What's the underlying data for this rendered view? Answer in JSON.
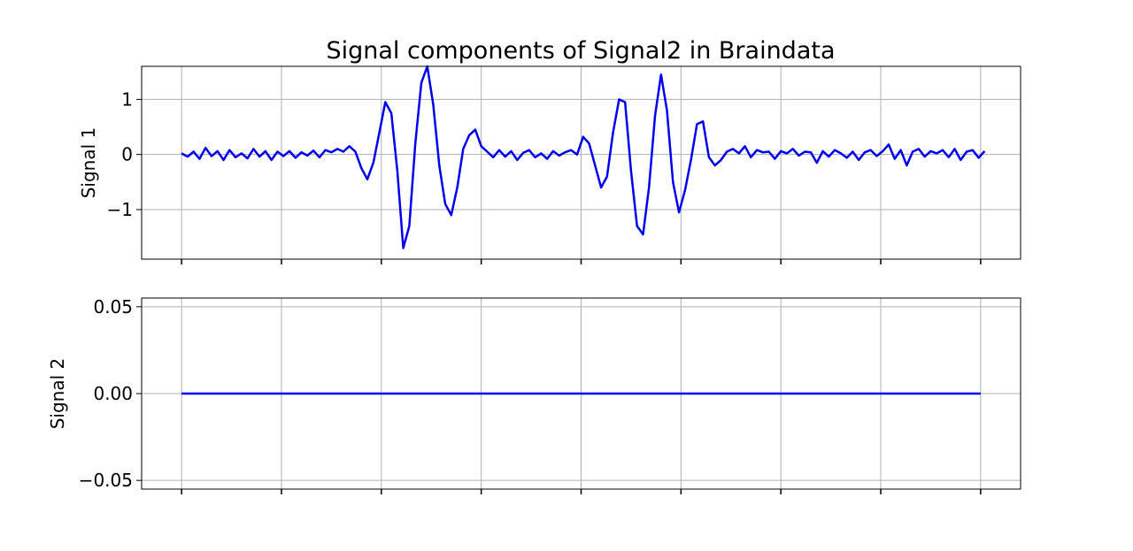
{
  "chart_data": [
    {
      "type": "line",
      "title": "Signal components of Signal2 in Braindata",
      "ylabel": "Signal 1",
      "ylim": [
        -1.9,
        1.6
      ],
      "yticks": [
        -1,
        0,
        1
      ],
      "ytick_labels": [
        "−1",
        "0",
        "1"
      ],
      "xlim": [
        -20,
        420
      ],
      "xticks": [
        0,
        50,
        100,
        150,
        200,
        250,
        300,
        350,
        400
      ],
      "xtick_labels_visible": false,
      "grid": true,
      "series": [
        {
          "color": "#0000ee",
          "x": [
            0,
            3,
            6,
            9,
            12,
            15,
            18,
            21,
            24,
            27,
            30,
            33,
            36,
            39,
            42,
            45,
            48,
            51,
            54,
            57,
            60,
            63,
            66,
            69,
            72,
            75,
            78,
            81,
            84,
            87,
            90,
            93,
            96,
            99,
            102,
            105,
            108,
            111,
            114,
            117,
            120,
            123,
            126,
            129,
            132,
            135,
            138,
            141,
            144,
            147,
            150,
            153,
            156,
            159,
            162,
            165,
            168,
            171,
            174,
            177,
            180,
            183,
            186,
            189,
            192,
            195,
            198,
            201,
            204,
            207,
            210,
            213,
            216,
            219,
            222,
            225,
            228,
            231,
            234,
            237,
            240,
            243,
            246,
            249,
            252,
            255,
            258,
            261,
            264,
            267,
            270,
            273,
            276,
            279,
            282,
            285,
            288,
            291,
            294,
            297,
            300,
            303,
            306,
            309,
            312,
            315,
            318,
            321,
            324,
            327,
            330,
            333,
            336,
            339,
            342,
            345,
            348,
            351,
            354,
            357,
            360,
            363,
            366,
            369,
            372,
            375,
            378,
            381,
            384,
            387,
            390,
            393,
            396,
            399,
            402
          ],
          "y": [
            0.02,
            -0.04,
            0.05,
            -0.08,
            0.12,
            -0.03,
            0.06,
            -0.1,
            0.08,
            -0.05,
            0.02,
            -0.07,
            0.1,
            -0.04,
            0.06,
            -0.1,
            0.05,
            -0.03,
            0.06,
            -0.06,
            0.04,
            -0.02,
            0.07,
            -0.05,
            0.08,
            0.04,
            0.1,
            0.05,
            0.15,
            0.05,
            -0.25,
            -0.45,
            -0.15,
            0.4,
            0.95,
            0.75,
            -0.3,
            -1.7,
            -1.3,
            0.2,
            1.3,
            1.6,
            0.9,
            -0.2,
            -0.9,
            -1.1,
            -0.6,
            0.1,
            0.35,
            0.45,
            0.15,
            0.05,
            -0.05,
            0.08,
            -0.04,
            0.06,
            -0.1,
            0.03,
            0.08,
            -0.05,
            0.02,
            -0.08,
            0.06,
            -0.02,
            0.04,
            0.08,
            0.0,
            0.32,
            0.2,
            -0.2,
            -0.6,
            -0.4,
            0.4,
            1.0,
            0.95,
            -0.3,
            -1.3,
            -1.45,
            -0.6,
            0.7,
            1.45,
            0.8,
            -0.5,
            -1.05,
            -0.65,
            -0.1,
            0.55,
            0.6,
            -0.05,
            -0.2,
            -0.1,
            0.05,
            0.1,
            0.02,
            0.15,
            -0.05,
            0.08,
            0.04,
            0.05,
            -0.08,
            0.06,
            0.02,
            0.1,
            -0.02,
            0.05,
            0.04,
            -0.15,
            0.06,
            -0.04,
            0.08,
            0.02,
            -0.06,
            0.05,
            -0.1,
            0.04,
            0.08,
            -0.03,
            0.06,
            0.18,
            -0.08,
            0.08,
            -0.2,
            0.05,
            0.1,
            -0.04,
            0.06,
            0.02,
            0.08,
            -0.05,
            0.1,
            -0.1,
            0.05,
            0.08,
            -0.06,
            0.06
          ]
        }
      ]
    },
    {
      "type": "line",
      "ylabel": "Signal 2",
      "ylim": [
        -0.055,
        0.055
      ],
      "yticks": [
        -0.05,
        0.0,
        0.05
      ],
      "ytick_labels": [
        "−0.05",
        "0.00",
        "0.05"
      ],
      "xlim": [
        -20,
        420
      ],
      "xticks": [
        0,
        50,
        100,
        150,
        200,
        250,
        300,
        350,
        400
      ],
      "xtick_labels_visible": false,
      "grid": true,
      "series": [
        {
          "color": "#0000ee",
          "x": [
            0,
            400
          ],
          "y": [
            0,
            0
          ]
        }
      ]
    }
  ]
}
